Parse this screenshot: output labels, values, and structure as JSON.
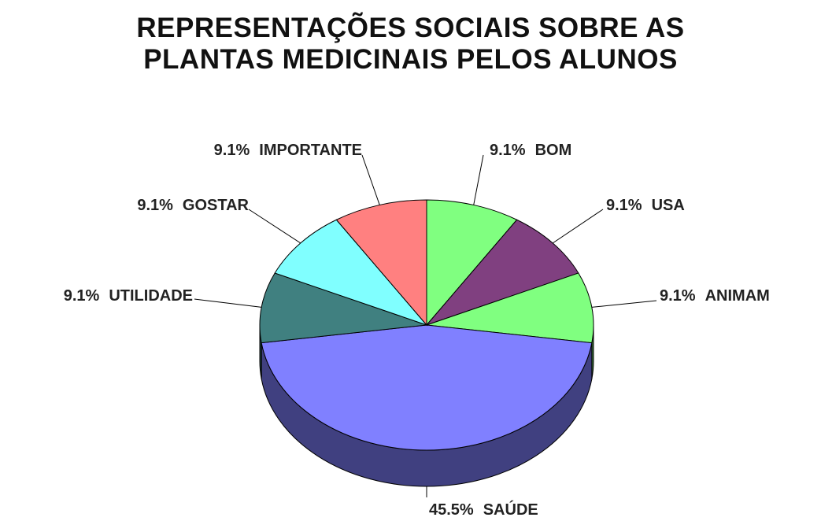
{
  "chart_data": {
    "type": "pie",
    "title": [
      "REPRESENTAÇÕES SOCIAIS SOBRE AS",
      "PLANTAS MEDICINAIS PELOS ALUNOS"
    ],
    "categories": [
      "BOM",
      "USA",
      "ANIMAM",
      "SAÚDE",
      "UTILIDADE",
      "GOSTAR",
      "IMPORTANTE"
    ],
    "values": [
      9.1,
      9.1,
      9.1,
      45.5,
      9.1,
      9.1,
      9.1
    ],
    "value_labels": [
      "9.1%",
      "9.1%",
      "9.1%",
      "45.5%",
      "9.1%",
      "9.1%",
      "9.1%"
    ],
    "colors": [
      "#80ff80",
      "#804080",
      "#80ff80",
      "#8080ff",
      "#408080",
      "#80ffff",
      "#ff8080"
    ]
  }
}
